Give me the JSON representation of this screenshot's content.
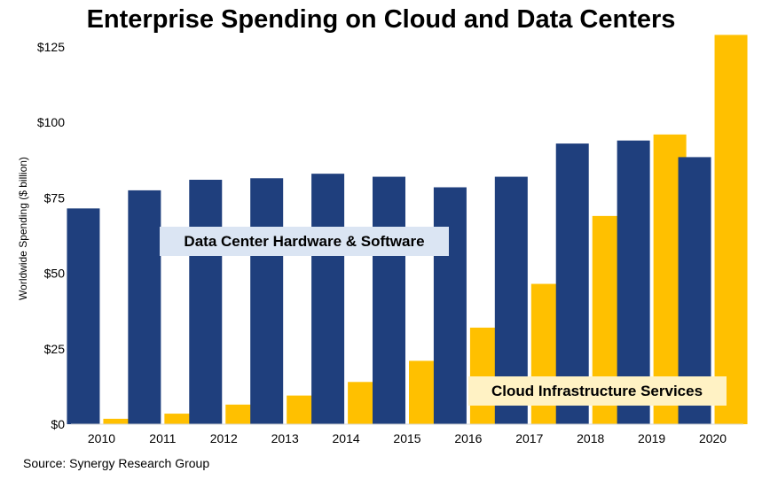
{
  "chart_data": {
    "type": "bar",
    "title": "Enterprise Spending on Cloud and Data Centers",
    "xlabel": "",
    "ylabel": "Worldwide Spending ($ billion)",
    "ylim": [
      0,
      130
    ],
    "yticks": [
      "$0",
      "$25",
      "$50",
      "$75",
      "$100",
      "$125"
    ],
    "ytick_values": [
      0,
      25,
      50,
      75,
      100,
      125
    ],
    "categories": [
      "2010",
      "2011",
      "2012",
      "2013",
      "2014",
      "2015",
      "2016",
      "2017",
      "2018",
      "2019",
      "2020"
    ],
    "series": [
      {
        "name": "Data Center Hardware & Software",
        "color": "#1f3f7d",
        "values": [
          71.5,
          77.5,
          81,
          81.5,
          83,
          82,
          78.5,
          82,
          93,
          94,
          88.5
        ]
      },
      {
        "name": "Cloud Infrastructure Services",
        "color": "#ffc000",
        "values": [
          1.8,
          3.5,
          6.5,
          9.5,
          14,
          21,
          32,
          46.5,
          69,
          96,
          129
        ]
      }
    ],
    "grid": false,
    "legend": "in-plot labels",
    "source": "Source: Synergy Research Group"
  }
}
